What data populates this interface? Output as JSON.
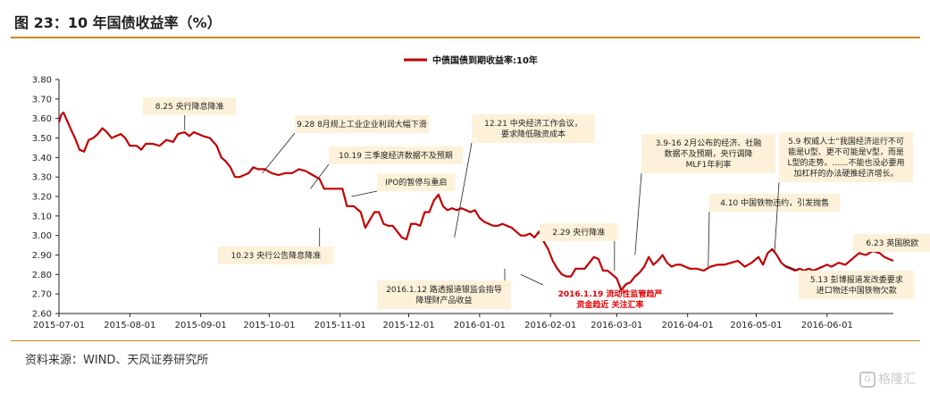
{
  "page": {
    "title": "图 23：10 年国债收益率（%）",
    "source": "资料来源：WIND、天风证券研究所",
    "watermark": "格隆汇"
  },
  "colors": {
    "series": "#c00000",
    "accent": "#c9891f",
    "annotation_bg": "#fdf2d9"
  },
  "chart_data": {
    "type": "line",
    "title": "",
    "xlabel": "",
    "ylabel": "",
    "ylim": [
      2.6,
      3.8
    ],
    "xlim": [
      "2015-07-01",
      "2016-06-30"
    ],
    "yticks": [
      "2.60",
      "2.70",
      "2.80",
      "2.90",
      "3.00",
      "3.10",
      "3.20",
      "3.30",
      "3.40",
      "3.50",
      "3.60",
      "3.70",
      "3.80"
    ],
    "xticks": [
      {
        "date": "2015-07-01",
        "label": "2015-07-01"
      },
      {
        "date": "2015-08-01",
        "label": "2015-08-01"
      },
      {
        "date": "2015-09-01",
        "label": "2015-09-01"
      },
      {
        "date": "2015-10-01",
        "label": "2015-10-01"
      },
      {
        "date": "2015-11-01",
        "label": "2015-11-01"
      },
      {
        "date": "2015-12-01",
        "label": "2015-12-01"
      },
      {
        "date": "2016-01-01",
        "label": "2016-01-01"
      },
      {
        "date": "2016-02-01",
        "label": "2016-02-01"
      },
      {
        "date": "2016-03-01",
        "label": "2016-03-01"
      },
      {
        "date": "2016-04-01",
        "label": "2016-04-01"
      },
      {
        "date": "2016-05-01",
        "label": "2016-05-01"
      },
      {
        "date": "2016-06-01",
        "label": "2016-06-01"
      }
    ],
    "legend": {
      "position": "top-center"
    },
    "grid": false,
    "series": [
      {
        "name": "中债国债到期收益率:10年",
        "points": [
          [
            "2015-07-01",
            3.58
          ],
          [
            "2015-07-02",
            3.62
          ],
          [
            "2015-07-03",
            3.63
          ],
          [
            "2015-07-06",
            3.55
          ],
          [
            "2015-07-08",
            3.5
          ],
          [
            "2015-07-10",
            3.44
          ],
          [
            "2015-07-12",
            3.43
          ],
          [
            "2015-07-14",
            3.49
          ],
          [
            "2015-07-16",
            3.5
          ],
          [
            "2015-07-18",
            3.52
          ],
          [
            "2015-07-20",
            3.55
          ],
          [
            "2015-07-22",
            3.53
          ],
          [
            "2015-07-24",
            3.5
          ],
          [
            "2015-07-26",
            3.51
          ],
          [
            "2015-07-28",
            3.52
          ],
          [
            "2015-07-30",
            3.5
          ],
          [
            "2015-08-01",
            3.46
          ],
          [
            "2015-08-04",
            3.46
          ],
          [
            "2015-08-06",
            3.44
          ],
          [
            "2015-08-08",
            3.47
          ],
          [
            "2015-08-11",
            3.47
          ],
          [
            "2015-08-14",
            3.46
          ],
          [
            "2015-08-17",
            3.49
          ],
          [
            "2015-08-20",
            3.48
          ],
          [
            "2015-08-22",
            3.52
          ],
          [
            "2015-08-25",
            3.53
          ],
          [
            "2015-08-27",
            3.51
          ],
          [
            "2015-08-29",
            3.53
          ],
          [
            "2015-08-31",
            3.52
          ],
          [
            "2015-09-02",
            3.51
          ],
          [
            "2015-09-05",
            3.5
          ],
          [
            "2015-09-08",
            3.46
          ],
          [
            "2015-09-10",
            3.4
          ],
          [
            "2015-09-12",
            3.38
          ],
          [
            "2015-09-14",
            3.35
          ],
          [
            "2015-09-16",
            3.3
          ],
          [
            "2015-09-18",
            3.3
          ],
          [
            "2015-09-20",
            3.31
          ],
          [
            "2015-09-22",
            3.32
          ],
          [
            "2015-09-24",
            3.35
          ],
          [
            "2015-09-26",
            3.34
          ],
          [
            "2015-09-29",
            3.34
          ],
          [
            "2015-10-02",
            3.32
          ],
          [
            "2015-10-05",
            3.31
          ],
          [
            "2015-10-08",
            3.32
          ],
          [
            "2015-10-11",
            3.32
          ],
          [
            "2015-10-14",
            3.34
          ],
          [
            "2015-10-17",
            3.33
          ],
          [
            "2015-10-20",
            3.31
          ],
          [
            "2015-10-23",
            3.29
          ],
          [
            "2015-10-25",
            3.24
          ],
          [
            "2015-10-28",
            3.24
          ],
          [
            "2015-10-31",
            3.24
          ],
          [
            "2015-11-02",
            3.24
          ],
          [
            "2015-11-04",
            3.15
          ],
          [
            "2015-11-07",
            3.15
          ],
          [
            "2015-11-10",
            3.12
          ],
          [
            "2015-11-12",
            3.04
          ],
          [
            "2015-11-14",
            3.08
          ],
          [
            "2015-11-16",
            3.12
          ],
          [
            "2015-11-18",
            3.12
          ],
          [
            "2015-11-20",
            3.06
          ],
          [
            "2015-11-22",
            3.05
          ],
          [
            "2015-11-24",
            3.05
          ],
          [
            "2015-11-26",
            3.02
          ],
          [
            "2015-11-28",
            2.99
          ],
          [
            "2015-11-30",
            2.98
          ],
          [
            "2015-12-02",
            3.06
          ],
          [
            "2015-12-04",
            3.06
          ],
          [
            "2015-12-06",
            3.05
          ],
          [
            "2015-12-08",
            3.12
          ],
          [
            "2015-12-10",
            3.12
          ],
          [
            "2015-12-12",
            3.18
          ],
          [
            "2015-12-14",
            3.21
          ],
          [
            "2015-12-16",
            3.15
          ],
          [
            "2015-12-18",
            3.13
          ],
          [
            "2015-12-20",
            3.14
          ],
          [
            "2015-12-22",
            3.13
          ],
          [
            "2015-12-24",
            3.14
          ],
          [
            "2015-12-26",
            3.13
          ],
          [
            "2015-12-28",
            3.12
          ],
          [
            "2015-12-30",
            3.13
          ],
          [
            "2016-01-01",
            3.09
          ],
          [
            "2016-01-03",
            3.07
          ],
          [
            "2016-01-05",
            3.06
          ],
          [
            "2016-01-07",
            3.05
          ],
          [
            "2016-01-09",
            3.05
          ],
          [
            "2016-01-11",
            3.06
          ],
          [
            "2016-01-13",
            3.05
          ],
          [
            "2016-01-15",
            3.04
          ],
          [
            "2016-01-17",
            3.02
          ],
          [
            "2016-01-19",
            3.0
          ],
          [
            "2016-01-21",
            3.0
          ],
          [
            "2016-01-23",
            3.01
          ],
          [
            "2016-01-25",
            2.99
          ],
          [
            "2016-01-27",
            3.02
          ],
          [
            "2016-01-29",
            2.97
          ],
          [
            "2016-01-31",
            2.93
          ],
          [
            "2016-02-02",
            2.87
          ],
          [
            "2016-02-04",
            2.83
          ],
          [
            "2016-02-06",
            2.8
          ],
          [
            "2016-02-08",
            2.79
          ],
          [
            "2016-02-10",
            2.79
          ],
          [
            "2016-02-12",
            2.83
          ],
          [
            "2016-02-14",
            2.83
          ],
          [
            "2016-02-16",
            2.83
          ],
          [
            "2016-02-18",
            2.86
          ],
          [
            "2016-02-20",
            2.89
          ],
          [
            "2016-02-22",
            2.88
          ],
          [
            "2016-02-24",
            2.82
          ],
          [
            "2016-02-26",
            2.82
          ],
          [
            "2016-02-28",
            2.8
          ],
          [
            "2016-03-01",
            2.78
          ],
          [
            "2016-03-03",
            2.72
          ],
          [
            "2016-03-05",
            2.75
          ],
          [
            "2016-03-07",
            2.76
          ],
          [
            "2016-03-09",
            2.79
          ],
          [
            "2016-03-11",
            2.81
          ],
          [
            "2016-03-13",
            2.84
          ],
          [
            "2016-03-15",
            2.89
          ],
          [
            "2016-03-17",
            2.85
          ],
          [
            "2016-03-19",
            2.87
          ],
          [
            "2016-03-21",
            2.9
          ],
          [
            "2016-03-23",
            2.86
          ],
          [
            "2016-03-25",
            2.84
          ],
          [
            "2016-03-27",
            2.85
          ],
          [
            "2016-03-29",
            2.85
          ],
          [
            "2016-03-31",
            2.84
          ],
          [
            "2016-04-02",
            2.83
          ],
          [
            "2016-04-05",
            2.83
          ],
          [
            "2016-04-08",
            2.82
          ],
          [
            "2016-04-11",
            2.84
          ],
          [
            "2016-04-14",
            2.85
          ],
          [
            "2016-04-17",
            2.85
          ],
          [
            "2016-04-20",
            2.86
          ],
          [
            "2016-04-23",
            2.87
          ],
          [
            "2016-04-26",
            2.84
          ],
          [
            "2016-04-29",
            2.86
          ],
          [
            "2016-05-02",
            2.89
          ],
          [
            "2016-05-04",
            2.85
          ],
          [
            "2016-05-06",
            2.91
          ],
          [
            "2016-05-08",
            2.93
          ],
          [
            "2016-05-10",
            2.9
          ],
          [
            "2016-05-12",
            2.86
          ],
          [
            "2016-05-14",
            2.84
          ],
          [
            "2016-05-16",
            2.83
          ],
          [
            "2016-05-18",
            2.82
          ],
          [
            "2016-05-20",
            2.83
          ],
          [
            "2016-05-22",
            2.82
          ],
          [
            "2016-05-24",
            2.83
          ],
          [
            "2016-05-26",
            2.82
          ],
          [
            "2016-05-28",
            2.83
          ],
          [
            "2016-05-30",
            2.84
          ],
          [
            "2016-06-01",
            2.85
          ],
          [
            "2016-06-03",
            2.84
          ],
          [
            "2016-06-06",
            2.86
          ],
          [
            "2016-06-09",
            2.85
          ],
          [
            "2016-06-12",
            2.88
          ],
          [
            "2016-06-15",
            2.91
          ],
          [
            "2016-06-18",
            2.9
          ],
          [
            "2016-06-21",
            2.92
          ],
          [
            "2016-06-24",
            2.91
          ],
          [
            "2016-06-26",
            2.89
          ],
          [
            "2016-06-28",
            2.88
          ],
          [
            "2016-06-30",
            2.87
          ]
        ]
      }
    ],
    "annotations": [
      {
        "lines": [
          "8.25 央行降息降准"
        ],
        "at": [
          "2015-08-25",
          3.54
        ]
      },
      {
        "lines": [
          "9.28 8月规上工业企业利润大幅下滑"
        ],
        "at": [
          "2015-09-28",
          3.32
        ]
      },
      {
        "lines": [
          "10.19 三季度经济数据不及预期"
        ],
        "at": [
          "2015-10-19",
          3.24
        ]
      },
      {
        "lines": [
          "IPO的暂停与重启"
        ],
        "at": [
          "2015-11-06",
          3.2
        ]
      },
      {
        "lines": [
          "10.23 央行公告降息降准"
        ],
        "at": [
          "2015-10-23",
          3.04
        ]
      },
      {
        "lines": [
          "12.21 中央经济工作会议，",
          "要求降低融资成本"
        ],
        "at": [
          "2015-12-21",
          2.99
        ]
      },
      {
        "lines": [
          "2016.1.12 路透报道银监会指导",
          "降理财产品收益"
        ],
        "at": [
          "2016-01-12",
          2.83
        ]
      },
      {
        "lines": [
          "2016.1.19 流动性监管趋严",
          "资金趋近 关注汇率"
        ],
        "at": [
          "2016-01-19",
          2.8
        ],
        "highlight": true
      },
      {
        "lines": [
          "2.29 央行降准"
        ],
        "at": [
          "2016-02-29",
          2.82
        ]
      },
      {
        "lines": [
          "3.9-16 2月公布的经济、社融",
          "数据不及预期，央行调降",
          "MLF1年利率"
        ],
        "at": [
          "2016-03-09",
          2.9
        ]
      },
      {
        "lines": [
          "4.10 中国铁物违约，引发抛售"
        ],
        "at": [
          "2016-04-10",
          2.84
        ]
      },
      {
        "lines": [
          "5.9 权威人士“我国经济运行不可",
          "能是U型、更不可能是V型，而是",
          "L型的走势。……不能也没必要用",
          "加杠杆的办法硬推经济增长。"
        ],
        "at": [
          "2016-05-09",
          2.91
        ]
      },
      {
        "lines": [
          "6.23 英国脱欧"
        ],
        "at": [
          "2016-06-23",
          2.91
        ]
      },
      {
        "lines": [
          "5.13 彭博报道发改委要求",
          "进口物还中国铁物欠款"
        ],
        "at": [
          "2016-05-13",
          2.85
        ]
      }
    ]
  }
}
